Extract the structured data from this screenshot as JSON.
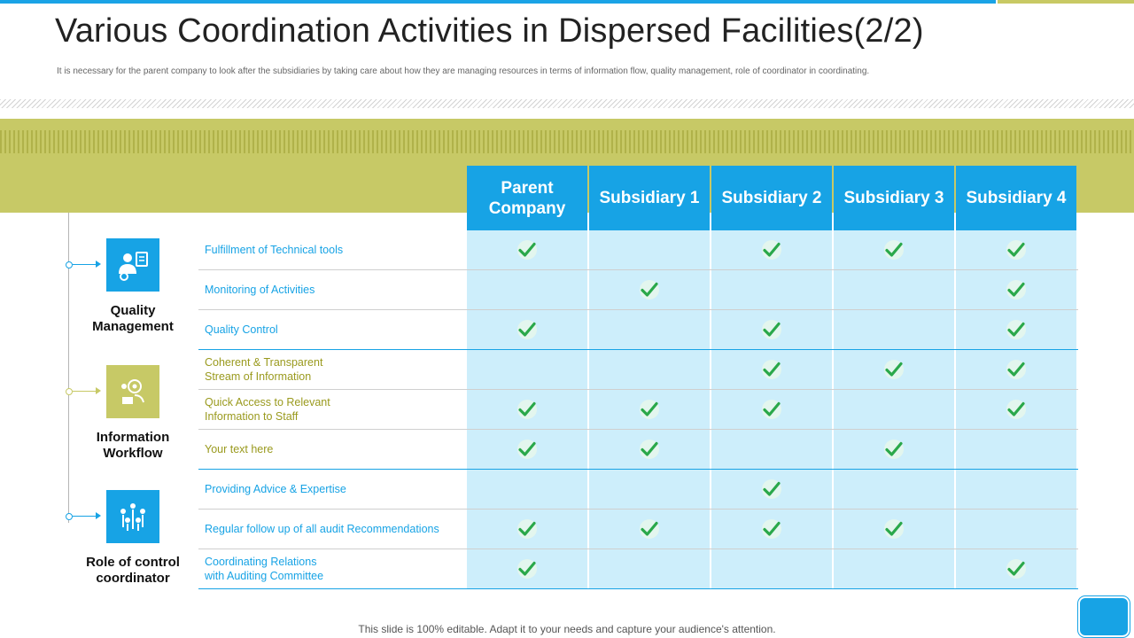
{
  "title": "Various Coordination Activities in Dispersed Facilities(2/2)",
  "subtitle": "It is necessary for the parent company to look after the subsidiaries by taking care about how  they are managing resources in terms of information flow, quality management, role of coordinator in coordinating.",
  "footer": "This slide is 100% editable. Adapt it to your needs and capture your audience's attention.",
  "colors": {
    "blue": "#17a3e5",
    "olive": "#c7c966",
    "light_blue": "#cdeefb",
    "check_green": "#2aa84a",
    "olive_text": "#9a9a1e"
  },
  "columns": [
    "Parent Company",
    "Subsidiary 1",
    "Subsidiary 2",
    "Subsidiary 3",
    "Subsidiary 4"
  ],
  "groups": [
    {
      "label": "Quality Management",
      "icon": "quality-team-icon",
      "color": "blue"
    },
    {
      "label": "Information Workflow",
      "icon": "info-workflow-icon",
      "color": "olive"
    },
    {
      "label": "Role of control coordinator",
      "icon": "people-network-icon",
      "color": "blue"
    }
  ],
  "rows": [
    {
      "label": "Fulfillment of Technical tools",
      "group": 0,
      "checks": [
        true,
        false,
        true,
        true,
        true
      ]
    },
    {
      "label": "Monitoring of Activities",
      "group": 0,
      "checks": [
        false,
        true,
        false,
        false,
        true
      ]
    },
    {
      "label": "Quality Control",
      "group": 0,
      "checks": [
        true,
        false,
        true,
        false,
        true
      ]
    },
    {
      "label": "Coherent & Transparent\nStream of Information",
      "group": 1,
      "checks": [
        false,
        false,
        true,
        true,
        true
      ]
    },
    {
      "label": "Quick Access to Relevant\nInformation to Staff",
      "group": 1,
      "checks": [
        true,
        true,
        true,
        false,
        true
      ]
    },
    {
      "label": "Your text here",
      "group": 1,
      "checks": [
        true,
        true,
        false,
        true,
        false
      ]
    },
    {
      "label": "Providing Advice & Expertise",
      "group": 2,
      "checks": [
        false,
        false,
        true,
        false,
        false
      ]
    },
    {
      "label": "Regular follow up of all audit Recommendations",
      "group": 2,
      "checks": [
        true,
        true,
        true,
        true,
        false
      ]
    },
    {
      "label": "Coordinating Relations\nwith Auditing Committee",
      "group": 2,
      "checks": [
        true,
        false,
        false,
        false,
        true
      ]
    }
  ]
}
